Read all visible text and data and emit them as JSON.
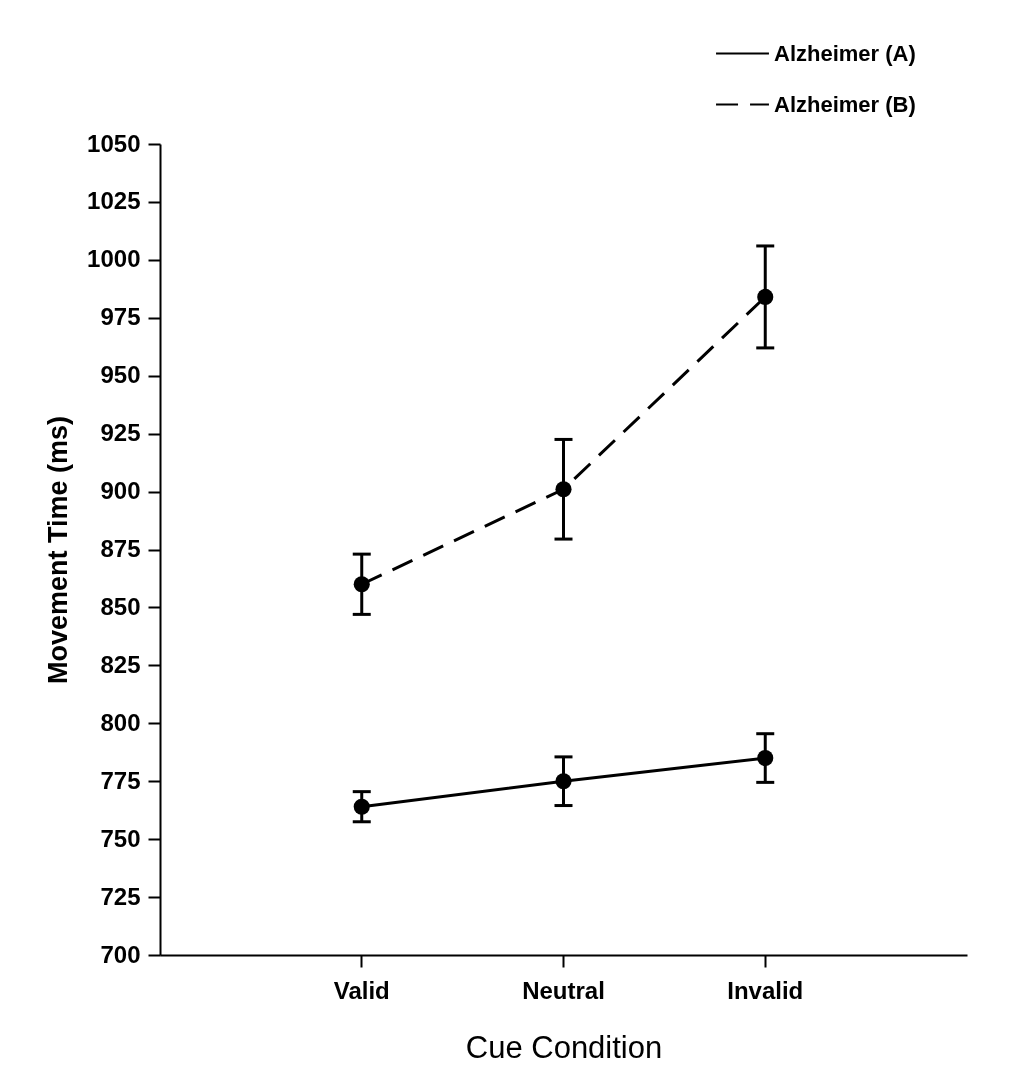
{
  "chart_data": {
    "type": "line",
    "xlabel": "Cue Condition",
    "ylabel": "Movement Time (ms)",
    "categories": [
      "Valid",
      "Neutral",
      "Invalid"
    ],
    "series": [
      {
        "name": "Alzheimer (A)",
        "color": "#000000",
        "line_style": "solid",
        "values": [
          764,
          775,
          785
        ],
        "errors": [
          6.5,
          10.5,
          10.5
        ]
      },
      {
        "name": "Alzheimer (B)",
        "color": "#000000",
        "line_style": "dashed",
        "values": [
          860,
          901,
          984
        ],
        "errors": [
          13,
          21.5,
          22
        ]
      }
    ],
    "ylim": [
      700,
      1050
    ],
    "yticks": [
      700,
      725,
      750,
      775,
      800,
      825,
      850,
      875,
      900,
      925,
      950,
      975,
      1000,
      1025,
      1050
    ],
    "marker": "circle",
    "legend": "top right",
    "grid": false
  }
}
